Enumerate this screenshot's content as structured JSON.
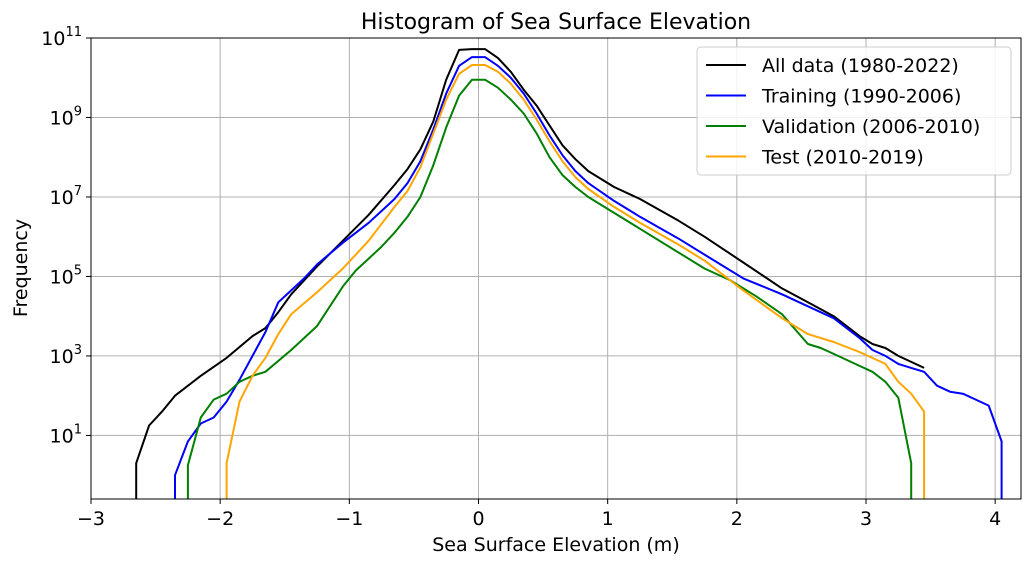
{
  "chart_data": {
    "type": "line",
    "title": "Histogram of Sea Surface Elevation",
    "xlabel": "Sea Surface Elevation (m)",
    "ylabel": "Frequency",
    "yscale": "log",
    "grid": true,
    "legend_position": "top-right",
    "xlim": [
      -3,
      4.2
    ],
    "ylim_log10": [
      -0.6,
      11
    ],
    "x_ticks": [
      -3,
      -2,
      -1,
      0,
      1,
      2,
      3,
      4
    ],
    "x_tick_labels": [
      "−3",
      "−2",
      "−1",
      "0",
      "1",
      "2",
      "3",
      "4"
    ],
    "y_ticks_log10": [
      1,
      3,
      5,
      7,
      9,
      11
    ],
    "y_tick_labels": [
      {
        "base": "10",
        "exp": "1"
      },
      {
        "base": "10",
        "exp": "3"
      },
      {
        "base": "10",
        "exp": "5"
      },
      {
        "base": "10",
        "exp": "7"
      },
      {
        "base": "10",
        "exp": "9"
      },
      {
        "base": "10",
        "exp": "11"
      }
    ],
    "series": [
      {
        "name": "All data (1980-2022)",
        "color": "#000000",
        "x": [
          -2.65,
          -2.65,
          -2.55,
          -2.45,
          -2.35,
          -2.15,
          -1.95,
          -1.75,
          -1.65,
          -1.55,
          -1.45,
          -1.35,
          -1.25,
          -1.05,
          -0.85,
          -0.65,
          -0.55,
          -0.45,
          -0.35,
          -0.25,
          -0.15,
          -0.05,
          0.05,
          0.15,
          0.25,
          0.35,
          0.45,
          0.55,
          0.65,
          0.75,
          0.85,
          1.05,
          1.25,
          1.55,
          1.75,
          2.05,
          2.35,
          2.55,
          2.75,
          2.85,
          2.95,
          3.05,
          3.15,
          3.25,
          3.35,
          3.45
        ],
        "log10_y": [
          -0.6,
          0.3,
          1.25,
          1.6,
          2.0,
          2.5,
          2.95,
          3.5,
          3.7,
          4.1,
          4.55,
          4.9,
          5.25,
          5.9,
          6.55,
          7.3,
          7.7,
          8.2,
          8.9,
          9.95,
          10.7,
          10.72,
          10.72,
          10.5,
          10.15,
          9.7,
          9.3,
          8.8,
          8.3,
          7.95,
          7.65,
          7.25,
          6.95,
          6.4,
          6.0,
          5.35,
          4.7,
          4.35,
          4.0,
          3.75,
          3.5,
          3.3,
          3.2,
          3.0,
          2.85,
          2.7
        ]
      },
      {
        "name": "Training (1990-2006)",
        "color": "#0000ff",
        "x": [
          -2.35,
          -2.35,
          -2.25,
          -2.15,
          -2.05,
          -1.95,
          -1.85,
          -1.75,
          -1.65,
          -1.55,
          -1.45,
          -1.35,
          -1.25,
          -1.05,
          -0.85,
          -0.65,
          -0.55,
          -0.45,
          -0.35,
          -0.25,
          -0.15,
          -0.05,
          0.05,
          0.15,
          0.25,
          0.35,
          0.45,
          0.55,
          0.65,
          0.75,
          0.85,
          1.05,
          1.25,
          1.55,
          1.75,
          2.05,
          2.35,
          2.55,
          2.75,
          2.85,
          2.95,
          3.05,
          3.15,
          3.25,
          3.35,
          3.45,
          3.55,
          3.65,
          3.75,
          3.85,
          3.95,
          4.05,
          4.05
        ],
        "log10_y": [
          -0.6,
          0.0,
          0.85,
          1.3,
          1.45,
          1.85,
          2.4,
          3.0,
          3.6,
          4.35,
          4.65,
          4.95,
          5.3,
          5.85,
          6.35,
          6.95,
          7.35,
          7.9,
          8.7,
          9.6,
          10.3,
          10.52,
          10.52,
          10.3,
          10.0,
          9.6,
          9.1,
          8.55,
          8.05,
          7.65,
          7.35,
          6.9,
          6.5,
          5.95,
          5.55,
          4.95,
          4.55,
          4.25,
          3.95,
          3.7,
          3.45,
          3.15,
          3.0,
          2.8,
          2.7,
          2.6,
          2.25,
          2.1,
          2.05,
          1.9,
          1.75,
          0.85,
          -0.6
        ]
      },
      {
        "name": "Validation (2006-2010)",
        "color": "#008000",
        "x": [
          -2.25,
          -2.25,
          -2.15,
          -2.05,
          -1.95,
          -1.85,
          -1.75,
          -1.65,
          -1.45,
          -1.25,
          -1.05,
          -0.95,
          -0.85,
          -0.75,
          -0.65,
          -0.55,
          -0.45,
          -0.35,
          -0.25,
          -0.15,
          -0.05,
          0.05,
          0.15,
          0.25,
          0.35,
          0.45,
          0.55,
          0.65,
          0.75,
          0.85,
          1.05,
          1.25,
          1.55,
          1.75,
          1.95,
          2.15,
          2.35,
          2.55,
          2.65,
          2.75,
          2.85,
          2.95,
          3.05,
          3.15,
          3.25,
          3.35,
          3.35
        ],
        "log10_y": [
          -0.6,
          0.25,
          1.45,
          1.9,
          2.05,
          2.35,
          2.5,
          2.6,
          3.15,
          3.75,
          4.75,
          5.15,
          5.45,
          5.75,
          6.1,
          6.5,
          7.0,
          7.8,
          8.75,
          9.55,
          9.95,
          9.95,
          9.75,
          9.45,
          9.1,
          8.6,
          8.0,
          7.55,
          7.25,
          7.0,
          6.6,
          6.2,
          5.6,
          5.2,
          4.9,
          4.5,
          4.05,
          3.3,
          3.2,
          3.05,
          2.9,
          2.75,
          2.6,
          2.35,
          1.95,
          0.3,
          -0.6
        ]
      },
      {
        "name": "Test (2010-2019)",
        "color": "#ffa500",
        "x": [
          -1.95,
          -1.95,
          -1.85,
          -1.75,
          -1.65,
          -1.55,
          -1.45,
          -1.25,
          -1.05,
          -0.85,
          -0.65,
          -0.55,
          -0.45,
          -0.35,
          -0.25,
          -0.15,
          -0.05,
          0.05,
          0.15,
          0.25,
          0.35,
          0.45,
          0.55,
          0.65,
          0.75,
          0.85,
          1.05,
          1.25,
          1.55,
          1.75,
          2.05,
          2.35,
          2.55,
          2.75,
          2.95,
          3.15,
          3.25,
          3.35,
          3.45,
          3.45
        ],
        "log10_y": [
          -0.6,
          0.3,
          1.85,
          2.5,
          2.95,
          3.55,
          4.05,
          4.6,
          5.2,
          5.9,
          6.75,
          7.15,
          7.75,
          8.6,
          9.45,
          10.1,
          10.32,
          10.32,
          10.15,
          9.85,
          9.45,
          8.95,
          8.4,
          7.9,
          7.5,
          7.2,
          6.75,
          6.35,
          5.8,
          5.4,
          4.65,
          3.95,
          3.55,
          3.35,
          3.1,
          2.8,
          2.35,
          2.05,
          1.6,
          -0.6
        ]
      }
    ]
  }
}
